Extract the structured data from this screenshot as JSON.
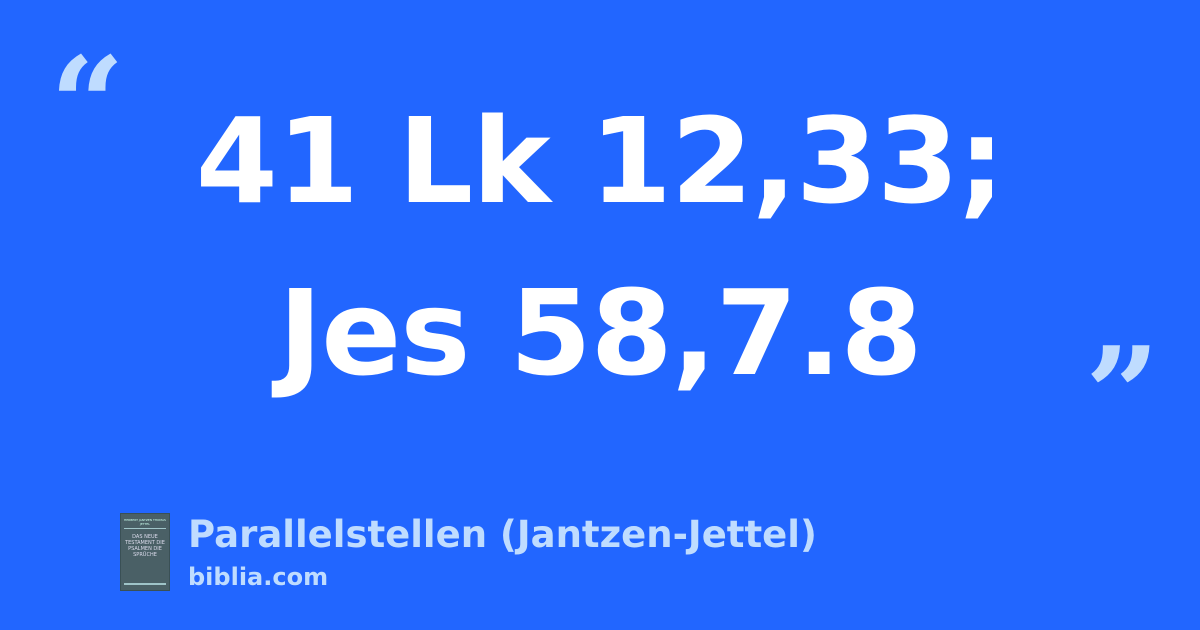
{
  "quote": {
    "open": "“",
    "close": "”"
  },
  "verse": {
    "line1": "41 Lk 12,33;",
    "line2": "Jes 58,7.8"
  },
  "source": {
    "title": "Parallelstellen (Jantzen-Jettel)",
    "site": "biblia.com",
    "cover": {
      "authors": "HERBERT JANTZEN THOMAS JETTEL",
      "text": "DAS NEUE TESTAMENT DIE PSALMEN DIE SPRÜCHE"
    }
  },
  "colors": {
    "background": "#2266ff",
    "accent": "#bfdcff",
    "text": "#ffffff"
  }
}
